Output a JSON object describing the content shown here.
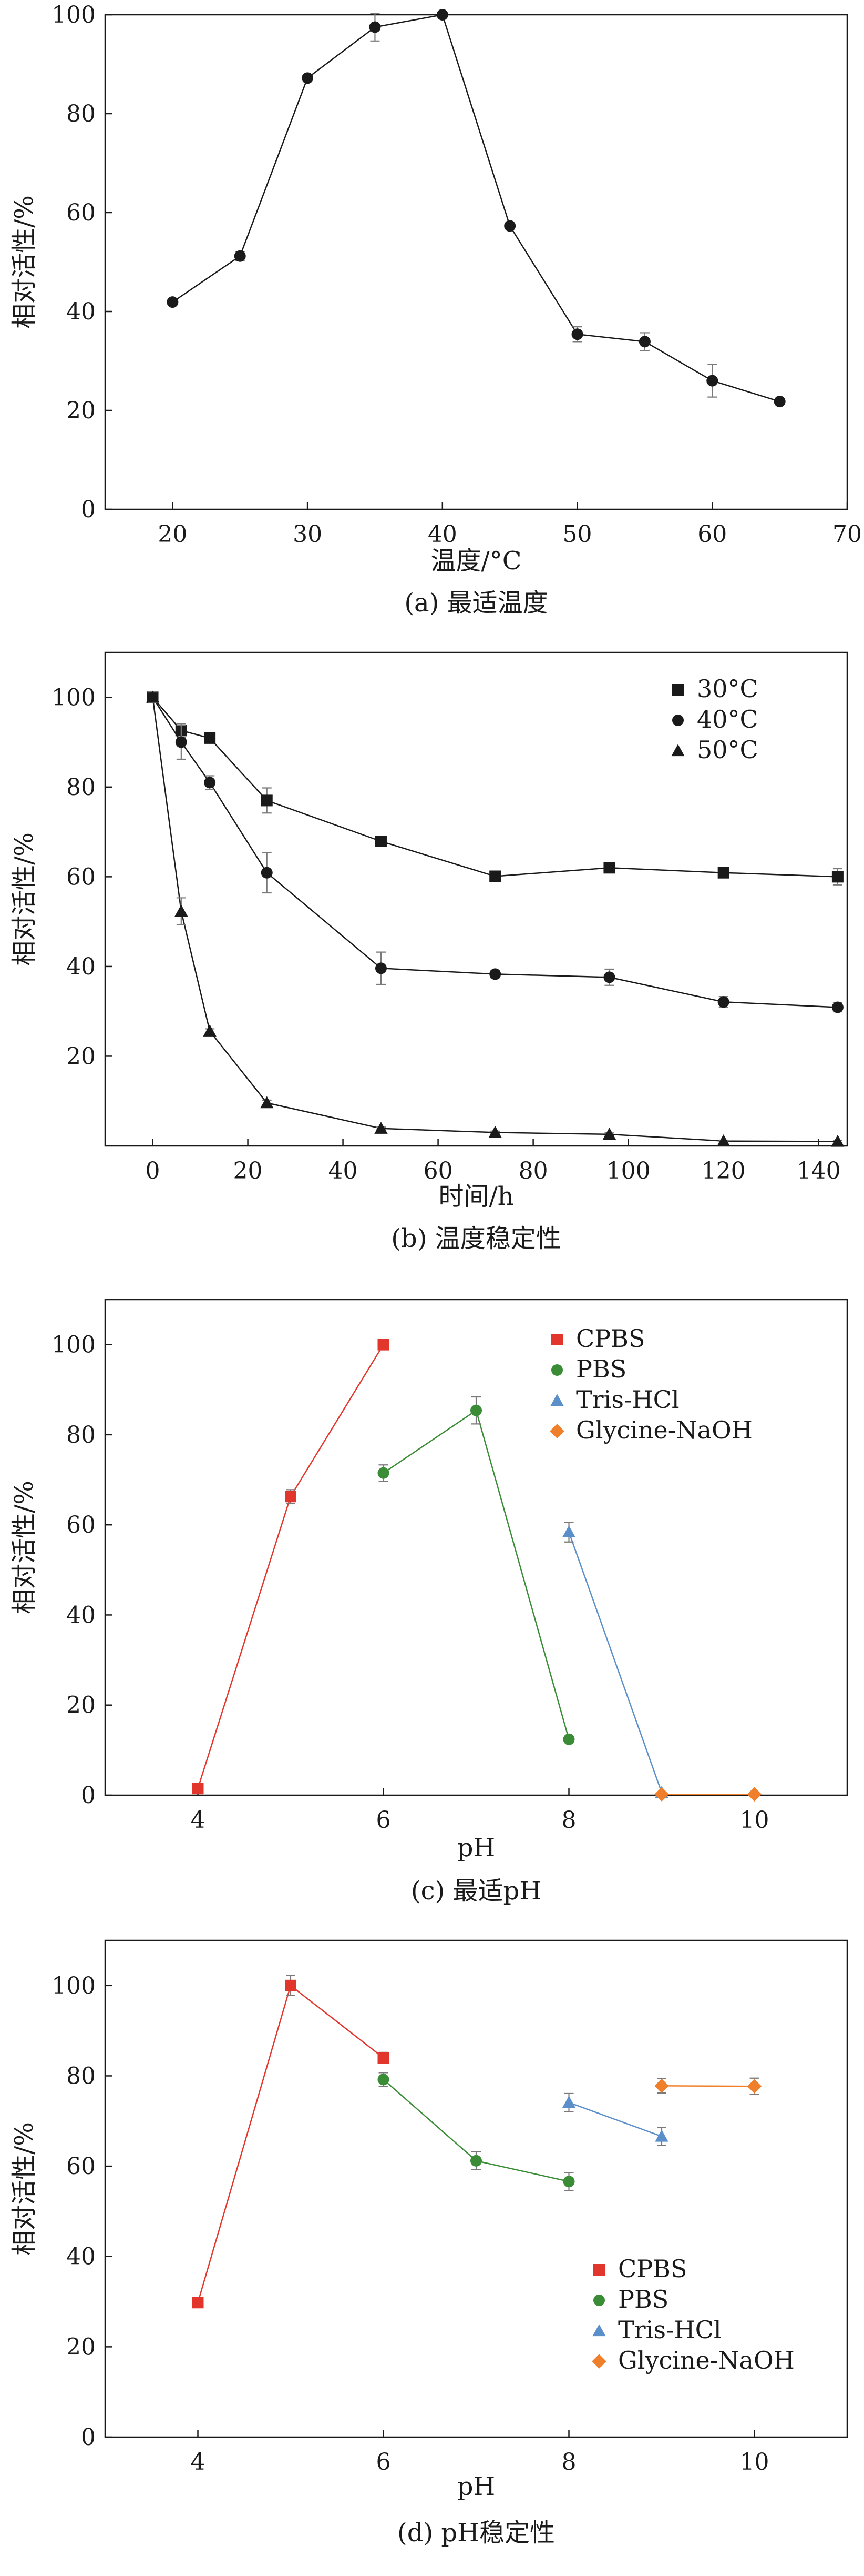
{
  "colors": {
    "black": "#1a1a1a",
    "red": "#e2362c",
    "green": "#3a8d36",
    "blue": "#5b8fc9",
    "orange": "#f07f2b",
    "errorbar_gray": "#7a7a7a"
  },
  "chart_data": [
    {
      "type": "line",
      "caption": "(a) 最适温度",
      "xlabel": "温度/°C",
      "ylabel": "相对活性/%",
      "xlim": [
        15,
        70
      ],
      "ylim": [
        0,
        100
      ],
      "xticks": [
        20,
        30,
        40,
        50,
        60,
        70
      ],
      "yticks": [
        0,
        20,
        40,
        60,
        80,
        100
      ],
      "legend_position": "none",
      "series": [
        {
          "marker": "circle",
          "color": "#1a1a1a",
          "x": [
            20,
            25,
            30,
            35,
            40,
            45,
            50,
            55,
            60,
            65
          ],
          "y": [
            41.9,
            51.2,
            87.2,
            97.5,
            100.0,
            57.3,
            35.4,
            33.9,
            26.0,
            21.8
          ],
          "err": [
            0,
            0.9,
            0,
            2.8,
            0,
            0,
            1.5,
            1.8,
            3.3,
            0
          ]
        }
      ]
    },
    {
      "type": "line",
      "caption": "(b) 温度稳定性",
      "xlabel": "时间/h",
      "ylabel": "相对活性/%",
      "xlim": [
        -10,
        146
      ],
      "ylim": [
        0,
        110
      ],
      "xticks": [
        0,
        20,
        40,
        60,
        80,
        100,
        120,
        140
      ],
      "yticks": [
        20,
        40,
        60,
        80,
        100
      ],
      "legend_position": "top-right",
      "series": [
        {
          "name": "30°C",
          "marker": "square",
          "color": "#1a1a1a",
          "x": [
            0,
            6,
            12,
            24,
            48,
            72,
            96,
            120,
            144
          ],
          "y": [
            100,
            92.6,
            90.9,
            77.0,
            67.9,
            60.1,
            62.0,
            60.9,
            60.0
          ],
          "err": [
            1.2,
            1.5,
            1.0,
            2.8,
            0.8,
            0.5,
            0.5,
            0.8,
            1.8
          ]
        },
        {
          "name": "40°C",
          "marker": "circle",
          "color": "#1a1a1a",
          "x": [
            0,
            6,
            12,
            24,
            48,
            72,
            96,
            120,
            144
          ],
          "y": [
            100,
            90.0,
            81.0,
            60.9,
            39.6,
            38.3,
            37.6,
            32.1,
            30.9
          ],
          "err": [
            1.2,
            3.8,
            1.5,
            4.5,
            3.6,
            0.8,
            1.8,
            1.2,
            1.0
          ]
        },
        {
          "name": "50°C",
          "marker": "triangle",
          "color": "#1a1a1a",
          "x": [
            0,
            6,
            12,
            24,
            48,
            72,
            96,
            120,
            144
          ],
          "y": [
            100,
            52.3,
            25.6,
            9.6,
            3.9,
            3.0,
            2.6,
            1.1,
            1.0
          ],
          "err": [
            1.2,
            3.0,
            0.5,
            0.6,
            0.3,
            0.3,
            0.3,
            0.2,
            0.2
          ]
        }
      ]
    },
    {
      "type": "line",
      "caption": "(c) 最适pH",
      "xlabel": "pH",
      "ylabel": "相对活性/%",
      "xlim": [
        3,
        11
      ],
      "ylim": [
        0,
        110
      ],
      "xticks": [
        4,
        6,
        8,
        10
      ],
      "yticks": [
        0,
        20,
        40,
        60,
        80,
        100
      ],
      "legend_position": "top-right",
      "series": [
        {
          "name": "CPBS",
          "marker": "square",
          "color": "#e2362c",
          "x": [
            4,
            5,
            6
          ],
          "y": [
            1.5,
            66.3,
            100.0
          ],
          "err": [
            0,
            1.5,
            0
          ]
        },
        {
          "name": "PBS",
          "marker": "circle",
          "color": "#3a8d36",
          "x": [
            6,
            7,
            8
          ],
          "y": [
            71.5,
            85.4,
            12.4
          ],
          "err": [
            1.8,
            3.0,
            0
          ]
        },
        {
          "name": "Tris-HCl",
          "marker": "triangle",
          "color": "#5b8fc9",
          "x": [
            8,
            9
          ],
          "y": [
            58.4,
            0.6
          ],
          "err": [
            2.2,
            0
          ]
        },
        {
          "name": "Glycine-NaOH",
          "marker": "diamond",
          "color": "#f07f2b",
          "x": [
            9,
            10
          ],
          "y": [
            0.2,
            0.2
          ],
          "err": [
            0,
            0
          ]
        }
      ]
    },
    {
      "type": "line",
      "caption": "(d) pH稳定性",
      "xlabel": "pH",
      "ylabel": "相对活性/%",
      "xlim": [
        3,
        11
      ],
      "ylim": [
        0,
        110
      ],
      "xticks": [
        4,
        6,
        8,
        10
      ],
      "yticks": [
        0,
        20,
        40,
        60,
        80,
        100
      ],
      "legend_position": "bottom-right",
      "series": [
        {
          "name": "CPBS",
          "marker": "square",
          "color": "#e2362c",
          "x": [
            4,
            5,
            6
          ],
          "y": [
            29.8,
            100.0,
            84.0
          ],
          "err": [
            0,
            2.2,
            1.2
          ]
        },
        {
          "name": "PBS",
          "marker": "circle",
          "color": "#3a8d36",
          "x": [
            6,
            7,
            8
          ],
          "y": [
            79.2,
            61.2,
            56.6
          ],
          "err": [
            1.5,
            2.0,
            2.0
          ]
        },
        {
          "name": "Tris-HCl",
          "marker": "triangle",
          "color": "#5b8fc9",
          "x": [
            8,
            9
          ],
          "y": [
            74.1,
            66.6
          ],
          "err": [
            2.0,
            2.0
          ]
        },
        {
          "name": "Glycine-NaOH",
          "marker": "diamond",
          "color": "#f07f2b",
          "x": [
            9,
            10
          ],
          "y": [
            77.8,
            77.7
          ],
          "err": [
            1.6,
            1.8
          ]
        }
      ]
    }
  ]
}
